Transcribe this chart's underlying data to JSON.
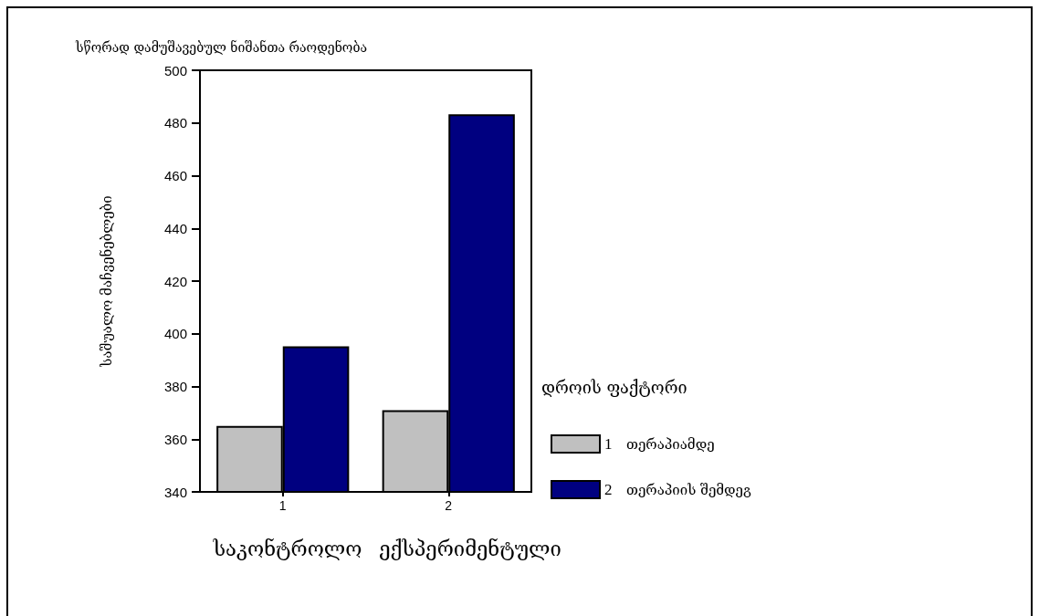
{
  "chart_data": {
    "type": "bar",
    "title": "სწორად დამუშავებულ ნიშანთა რაოდენობა",
    "ylabel": "საშუალო მაჩვენებლები",
    "legend_title": "დროის ფაქტორი",
    "categories": [
      "1",
      "2"
    ],
    "series": [
      {
        "name": "1 თერაპიამდე",
        "color": "#c0c0c0",
        "values": [
          365,
          371
        ]
      },
      {
        "name": "2 თერაპიის შემდეგ",
        "color": "#000080",
        "values": [
          395.2,
          483.3
        ]
      }
    ],
    "ylim": [
      340,
      500
    ],
    "yticks": [
      340,
      360,
      380,
      400,
      420,
      440,
      460,
      480,
      500
    ],
    "legend": "right",
    "annotations": [
      "საკონტროლო",
      "ექსპერიმენტული"
    ]
  }
}
